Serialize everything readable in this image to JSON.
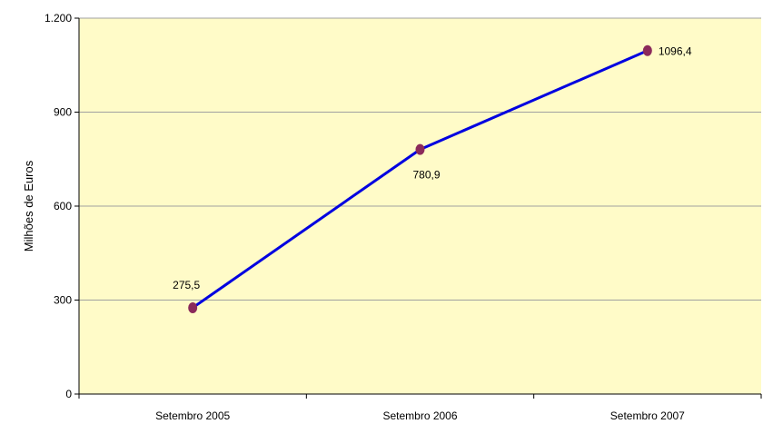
{
  "chart_data": {
    "type": "line",
    "categories": [
      "Setembro 2005",
      "Setembro 2006",
      "Setembro 2007"
    ],
    "series": [
      {
        "values": [
          275.5,
          780.9,
          1096.4
        ]
      }
    ],
    "data_labels": [
      "275,5",
      "780,9",
      "1096,4"
    ],
    "ylabel": "Milhões de Euros",
    "ylim": [
      0,
      1200
    ],
    "y_ticks": [
      0,
      300,
      600,
      900,
      1200
    ],
    "y_tick_labels": [
      "0",
      "300",
      "600",
      "900",
      "1.200"
    ],
    "grid": true,
    "legend": "none",
    "colors": {
      "plot_background": "#FFFBC8",
      "line": "#0000E0",
      "marker": "#8B2A5B",
      "gridline": "#A0A0A0",
      "axis": "#000000"
    }
  }
}
